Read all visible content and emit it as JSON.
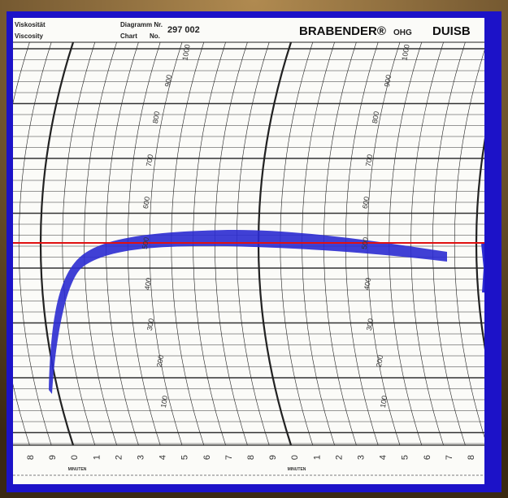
{
  "header": {
    "label_de": "Viskosität",
    "label_en": "Viscosity",
    "chart_de": "Diagramm Nr.",
    "chart_en": "Chart",
    "no": "No.",
    "number": "297 002",
    "brand": "BRABENDER®",
    "company": "OHG",
    "city": "DUISB"
  },
  "scale": [
    100,
    200,
    300,
    400,
    500,
    600,
    700,
    800,
    900,
    1000
  ],
  "minute_digits": [
    "8",
    "9",
    "0",
    "1",
    "2",
    "3",
    "4",
    "5",
    "6",
    "7",
    "8",
    "9",
    "0",
    "1",
    "2",
    "3",
    "4",
    "5",
    "6",
    "7",
    "8"
  ],
  "minutes_label": "MINUTEN"
}
